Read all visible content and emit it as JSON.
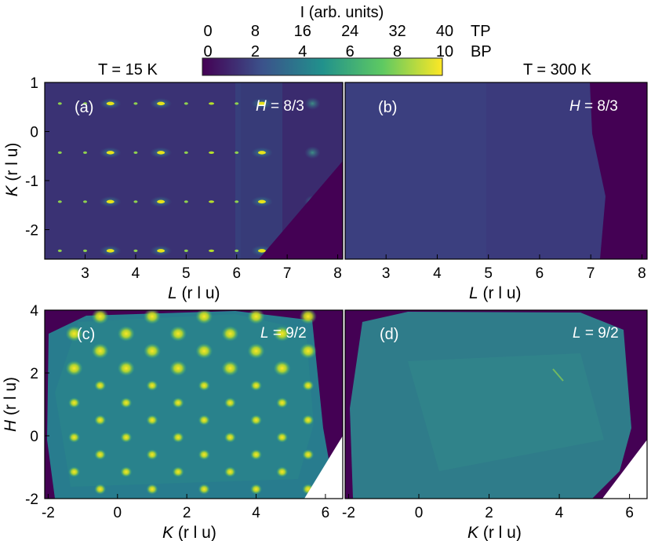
{
  "colorbar": {
    "title": "I (arb. units)",
    "top_ticks": [
      "0",
      "8",
      "16",
      "24",
      "32",
      "40"
    ],
    "top_label": "TP",
    "bottom_ticks": [
      "0",
      "2",
      "4",
      "6",
      "8",
      "10"
    ],
    "bottom_label": "BP",
    "colormap": [
      "#440154",
      "#3b528b",
      "#21918c",
      "#5ec962",
      "#fde725"
    ]
  },
  "headers": {
    "left": "T = 15 K",
    "right": "T = 300 K"
  },
  "chart_data": [
    {
      "type": "heatmap",
      "panel_label": "(a)",
      "slice_label": "H = 8/3",
      "slice_var": "H",
      "slice_value": "8/3",
      "xlabel_var": "L",
      "xlabel_unit": " (r l u)",
      "ylabel_var": "K",
      "ylabel_unit": " (r l u)",
      "xlim": [
        2.2,
        8.1
      ],
      "ylim": [
        -2.6,
        1.0
      ],
      "xticks": [
        "3",
        "4",
        "5",
        "6",
        "7",
        "8"
      ],
      "yticks": [
        "1",
        "0",
        "-1",
        "-2"
      ],
      "temperature": "15 K",
      "peak_rows_K": [
        0.57,
        -0.43,
        -1.43,
        -2.43
      ],
      "peak_cols_L": [
        2.5,
        3.0,
        3.5,
        4.0,
        4.5,
        5.0,
        5.5,
        6.0,
        6.5,
        7.5
      ]
    },
    {
      "type": "heatmap",
      "panel_label": "(b)",
      "slice_label": "H = 8/3",
      "slice_var": "H",
      "slice_value": "8/3",
      "xlabel_var": "L",
      "xlabel_unit": " (r l u)",
      "xlim": [
        2.2,
        8.1
      ],
      "ylim": [
        -2.6,
        1.0
      ],
      "xticks": [
        "3",
        "4",
        "5",
        "6",
        "7",
        "8"
      ],
      "temperature": "300 K"
    },
    {
      "type": "heatmap",
      "panel_label": "(c)",
      "slice_label": "L = 9/2",
      "slice_var": "L",
      "slice_value": "9/2",
      "xlabel_var": "K",
      "xlabel_unit": " (r l u)",
      "ylabel_var": "H",
      "ylabel_unit": " (r l u)",
      "xlim": [
        -2.1,
        6.5
      ],
      "ylim": [
        -2.0,
        4.0
      ],
      "xticks": [
        "-2",
        "0",
        "2",
        "4",
        "6"
      ],
      "yticks": [
        "4",
        "2",
        "0",
        "-2"
      ],
      "temperature": "15 K"
    },
    {
      "type": "heatmap",
      "panel_label": "(d)",
      "slice_label": "L = 9/2",
      "slice_var": "L",
      "slice_value": "9/2",
      "xlabel_var": "K",
      "xlabel_unit": " (r l u)",
      "xlim": [
        -2.1,
        6.5
      ],
      "ylim": [
        -2.0,
        4.0
      ],
      "xticks": [
        "-2",
        "0",
        "2",
        "4",
        "6"
      ],
      "temperature": "300 K"
    }
  ]
}
